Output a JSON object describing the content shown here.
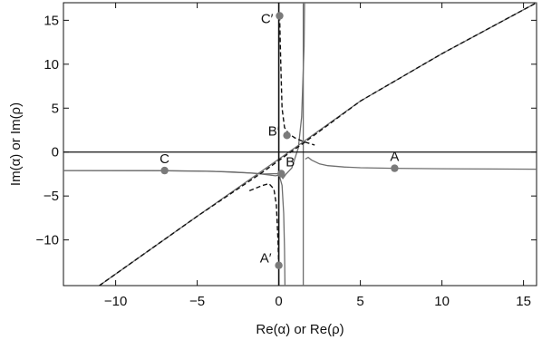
{
  "chart_data": {
    "type": "line",
    "title": "",
    "xlabel": "Re(α) or Re(ρ)",
    "ylabel": "Im(α) or Im(ρ)",
    "xlim": [
      -13.2,
      15.8
    ],
    "ylim": [
      -15.2,
      17.0
    ],
    "x_ticks": [
      -10,
      -5,
      0,
      5,
      10,
      15
    ],
    "y_ticks": [
      -10,
      -5,
      0,
      5,
      10,
      15
    ],
    "x_tick_labels": [
      "−10",
      "−5",
      "0",
      "5",
      "10",
      "15"
    ],
    "y_tick_labels": [
      "−10",
      "−5",
      "0",
      "5",
      "10",
      "15"
    ],
    "grid": false,
    "colors": {
      "solid_curve": "#6e6e6e",
      "dashed_curve": "#111111",
      "axes": "#111111",
      "points": "#7a7a7a"
    },
    "series": [
      {
        "style": "solid-gray",
        "segments": [
          [
            [
              -13.2,
              -2.1
            ],
            [
              -10,
              -2.11
            ],
            [
              -7,
              -2.12
            ],
            [
              -5,
              -2.15
            ],
            [
              -3,
              -2.25
            ],
            [
              -2,
              -2.35
            ],
            [
              -1,
              -2.5
            ],
            [
              0,
              -2.45
            ],
            [
              0.2,
              -3.8
            ],
            [
              0.3,
              -7
            ],
            [
              0.35,
              -11
            ],
            [
              0.38,
              -15.2
            ]
          ],
          [
            [
              -13.2,
              -2.1
            ],
            [
              -8,
              -2.1
            ],
            [
              -4,
              -2.2
            ],
            [
              -1.5,
              -2.4
            ],
            [
              -0.2,
              -2.7
            ],
            [
              0.1,
              -2.6
            ],
            [
              0.25,
              -3
            ],
            [
              0.45,
              -2.5
            ],
            [
              0.8,
              -1.8
            ],
            [
              1.2,
              0.5
            ],
            [
              1.4,
              4
            ],
            [
              1.55,
              12
            ],
            [
              1.58,
              17
            ]
          ],
          [
            [
              1.5,
              -15.2
            ],
            [
              1.5,
              17
            ]
          ],
          [
            [
              1.62,
              -0.8
            ],
            [
              1.8,
              -0.6
            ],
            [
              2.0,
              -0.9
            ],
            [
              2.5,
              -1.35
            ],
            [
              3,
              -1.55
            ],
            [
              4,
              -1.7
            ],
            [
              5,
              -1.78
            ],
            [
              7,
              -1.85
            ],
            [
              10,
              -1.9
            ],
            [
              13,
              -1.93
            ],
            [
              15.8,
              -1.95
            ]
          ],
          [
            [
              -11,
              -15.2
            ],
            [
              -5,
              -7.3
            ],
            [
              0,
              -0.8
            ],
            [
              1,
              0.5
            ],
            [
              5,
              5.8
            ],
            [
              10,
              11.2
            ],
            [
              15.8,
              17
            ]
          ]
        ]
      },
      {
        "style": "dashed-black",
        "segments": [
          [
            [
              -11,
              -15.2
            ],
            [
              -5,
              -7.3
            ],
            [
              -1,
              -2.3
            ],
            [
              0.5,
              -0.3
            ],
            [
              1.5,
              1
            ],
            [
              5,
              5.8
            ],
            [
              10,
              11.2
            ],
            [
              15.8,
              17
            ]
          ],
          [
            [
              -1.8,
              -4.4
            ],
            [
              -1,
              -3.8
            ],
            [
              -0.6,
              -3.6
            ],
            [
              -0.3,
              -4.2
            ],
            [
              -0.15,
              -6
            ],
            [
              -0.05,
              -10
            ],
            [
              0,
              -13
            ]
          ],
          [
            [
              0.05,
              15.5
            ],
            [
              0.12,
              10
            ],
            [
              0.2,
              5
            ],
            [
              0.35,
              2.8
            ],
            [
              0.6,
              2.1
            ],
            [
              1,
              1.6
            ],
            [
              1.5,
              1.2
            ],
            [
              2.2,
              0.8
            ]
          ]
        ]
      }
    ],
    "points": [
      {
        "label": "A",
        "x": 7.1,
        "y": -1.85
      },
      {
        "label": "B",
        "x": 0.15,
        "y": -2.45
      },
      {
        "label": "C",
        "x": -7.0,
        "y": -2.1
      },
      {
        "label": "A′",
        "x": 0.0,
        "y": -12.9
      },
      {
        "label": "B′",
        "x": 0.5,
        "y": 1.9
      },
      {
        "label": "C′",
        "x": 0.05,
        "y": 15.5
      }
    ]
  }
}
